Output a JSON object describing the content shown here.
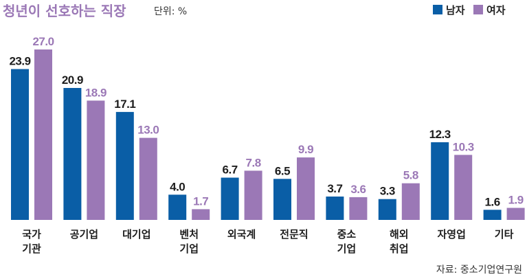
{
  "chart_data": {
    "type": "bar",
    "title": "청년이 선호하는 직장",
    "unit": "단위: %",
    "categories": [
      [
        "국가",
        "기관"
      ],
      [
        "공기업"
      ],
      [
        "대기업"
      ],
      [
        "벤처",
        "기업"
      ],
      [
        "외국계"
      ],
      [
        "전문직"
      ],
      [
        "중소",
        "기업"
      ],
      [
        "해외",
        "취업"
      ],
      [
        "자영업"
      ],
      [
        "기타"
      ]
    ],
    "series": [
      {
        "name": "남자",
        "color": "#0a5ea6",
        "values": [
          23.9,
          20.9,
          17.1,
          4.0,
          6.7,
          6.5,
          3.7,
          3.3,
          12.3,
          1.6
        ]
      },
      {
        "name": "여자",
        "color": "#9b78b6",
        "values": [
          27.0,
          18.9,
          13.0,
          1.7,
          7.8,
          9.9,
          3.6,
          5.8,
          10.3,
          1.9
        ]
      }
    ],
    "value_labels": [
      [
        "23.9",
        "20.9",
        "17.1",
        "4.0",
        "6.7",
        "6.5",
        "3.7",
        "3.3",
        "12.3",
        "1.6"
      ],
      [
        "27.0",
        "18.9",
        "13.0",
        "1.7",
        "7.8",
        "9.9",
        "3.6",
        "5.8",
        "10.3",
        "1.9"
      ]
    ],
    "value_label_colors": [
      "#1d1d1d",
      "#9b78b6"
    ],
    "ylim": [
      0,
      27.0
    ],
    "grid": false,
    "legend_position": "top-right",
    "source": "자료: 중소기업연구원"
  }
}
